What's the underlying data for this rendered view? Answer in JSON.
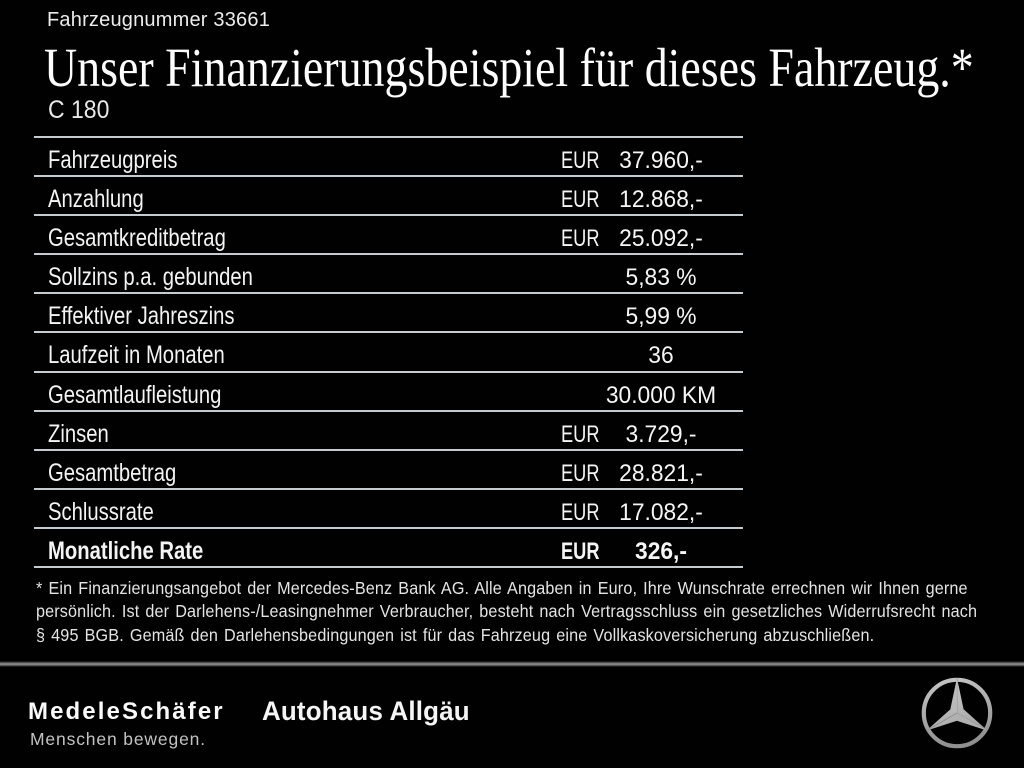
{
  "header": {
    "vehicle_number": "Fahrzeugnummer 33661",
    "title": "Unser Finanzierungsbeispiel für dieses Fahrzeug.*",
    "model": "C 180"
  },
  "table": {
    "rows": [
      {
        "label": "Fahrzeugpreis",
        "currency": "EUR",
        "value": "37.960,-",
        "bold": false
      },
      {
        "label": "Anzahlung",
        "currency": "EUR",
        "value": "12.868,-",
        "bold": false
      },
      {
        "label": "Gesamtkreditbetrag",
        "currency": "EUR",
        "value": "25.092,-",
        "bold": false
      },
      {
        "label": "Sollzins p.a. gebunden",
        "currency": "",
        "value": "5,83 %",
        "bold": false
      },
      {
        "label": "Effektiver Jahreszins",
        "currency": "",
        "value": "5,99 %",
        "bold": false
      },
      {
        "label": "Laufzeit in Monaten",
        "currency": "",
        "value": "36",
        "bold": false
      },
      {
        "label": "Gesamtlaufleistung",
        "currency": "",
        "value": "30.000 KM",
        "bold": false
      },
      {
        "label": "Zinsen",
        "currency": "EUR",
        "value": "3.729,-",
        "bold": false
      },
      {
        "label": "Gesamtbetrag",
        "currency": "EUR",
        "value": "28.821,-",
        "bold": false
      },
      {
        "label": "Schlussrate",
        "currency": "EUR",
        "value": "17.082,-",
        "bold": false
      },
      {
        "label": "Monatliche Rate",
        "currency": "EUR",
        "value": "326,-",
        "bold": true
      }
    ]
  },
  "footnote": {
    "lines": [
      "* Ein Finanzierungsangebot der Mercedes-Benz Bank AG. Alle Angaben in Euro, Ihre Wunschrate errechnen wir Ihnen gerne",
      "persönlich. Ist der Darlehens-/Leasingnehmer Verbraucher, besteht nach Vertragsschluss ein gesetzliches Widerrufsrecht nach",
      "§ 495 BGB. Gemäß den Darlehensbedingungen ist für das Fahrzeug eine Vollkaskoversicherung abzuschließen."
    ]
  },
  "footer": {
    "dealer_name": "MedeleSchäfer",
    "dealer_tagline": "Menschen bewegen.",
    "dealer_secondary": "Autohaus Allgäu",
    "brand_icon": "mercedes-star-icon"
  },
  "colors": {
    "background": "#010101",
    "text": "#f3f3f3",
    "line": "#c6cbd0",
    "divider": "#909090",
    "star": "#d9d9d9"
  }
}
